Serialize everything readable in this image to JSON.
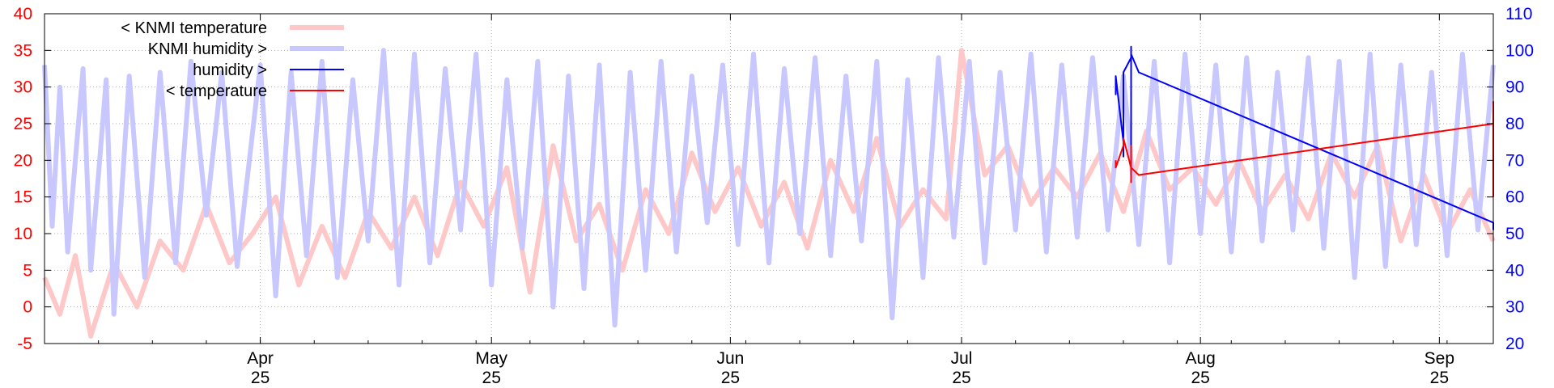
{
  "chart_data": {
    "type": "line",
    "title": "",
    "grid": true,
    "legend_position": "top-left",
    "x_range": [
      "2025-03-04",
      "2025-09-08"
    ],
    "x_ticks": [
      {
        "date": "2025-04-01",
        "month": "Apr",
        "day": "25"
      },
      {
        "date": "2025-05-01",
        "month": "May",
        "day": "25"
      },
      {
        "date": "2025-06-01",
        "month": "Jun",
        "day": "25"
      },
      {
        "date": "2025-07-01",
        "month": "Jul",
        "day": "25"
      },
      {
        "date": "2025-08-01",
        "month": "Aug",
        "day": "25"
      },
      {
        "date": "2025-09-01",
        "month": "Sep",
        "day": "25"
      }
    ],
    "y_left": {
      "range": [
        -5,
        40
      ],
      "ticks": [
        "40",
        "35",
        "30",
        "25",
        "20",
        "15",
        "10",
        "5",
        "0",
        "-5"
      ],
      "color": "#ff0000"
    },
    "y_right": {
      "range": [
        20,
        110
      ],
      "ticks": [
        "110",
        "100",
        "90",
        "80",
        "70",
        "60",
        "50",
        "40",
        "30",
        "20"
      ],
      "color": "#0000ff"
    },
    "series": [
      {
        "name": "< KNMI temperature",
        "axis": "left",
        "color": "#ffc8c8",
        "line_width": "thick",
        "points": [
          [
            "2025-03-04",
            4
          ],
          [
            "2025-03-06",
            -1
          ],
          [
            "2025-03-08",
            7
          ],
          [
            "2025-03-10",
            -4
          ],
          [
            "2025-03-13",
            6
          ],
          [
            "2025-03-16",
            0
          ],
          [
            "2025-03-19",
            9
          ],
          [
            "2025-03-22",
            5
          ],
          [
            "2025-03-25",
            14
          ],
          [
            "2025-03-28",
            6
          ],
          [
            "2025-03-31",
            10
          ],
          [
            "2025-04-03",
            15
          ],
          [
            "2025-04-06",
            3
          ],
          [
            "2025-04-09",
            11
          ],
          [
            "2025-04-12",
            4
          ],
          [
            "2025-04-15",
            13
          ],
          [
            "2025-04-18",
            8
          ],
          [
            "2025-04-21",
            15
          ],
          [
            "2025-04-24",
            7
          ],
          [
            "2025-04-27",
            17
          ],
          [
            "2025-04-30",
            11
          ],
          [
            "2025-05-03",
            19
          ],
          [
            "2025-05-06",
            2
          ],
          [
            "2025-05-09",
            22
          ],
          [
            "2025-05-12",
            9
          ],
          [
            "2025-05-15",
            14
          ],
          [
            "2025-05-18",
            5
          ],
          [
            "2025-05-21",
            16
          ],
          [
            "2025-05-24",
            10
          ],
          [
            "2025-05-27",
            21
          ],
          [
            "2025-05-30",
            13
          ],
          [
            "2025-06-02",
            19
          ],
          [
            "2025-06-05",
            11
          ],
          [
            "2025-06-08",
            17
          ],
          [
            "2025-06-11",
            8
          ],
          [
            "2025-06-14",
            20
          ],
          [
            "2025-06-17",
            13
          ],
          [
            "2025-06-20",
            23
          ],
          [
            "2025-06-23",
            11
          ],
          [
            "2025-06-26",
            16
          ],
          [
            "2025-06-29",
            12
          ],
          [
            "2025-07-01",
            35
          ],
          [
            "2025-07-04",
            18
          ],
          [
            "2025-07-07",
            22
          ],
          [
            "2025-07-10",
            14
          ],
          [
            "2025-07-13",
            19
          ],
          [
            "2025-07-16",
            15
          ],
          [
            "2025-07-19",
            21
          ],
          [
            "2025-07-22",
            13
          ],
          [
            "2025-07-25",
            24
          ],
          [
            "2025-07-28",
            16
          ],
          [
            "2025-07-31",
            19
          ],
          [
            "2025-08-03",
            14
          ],
          [
            "2025-08-06",
            20
          ],
          [
            "2025-08-09",
            13
          ],
          [
            "2025-08-12",
            18
          ],
          [
            "2025-08-15",
            12
          ],
          [
            "2025-08-18",
            21
          ],
          [
            "2025-08-21",
            15
          ],
          [
            "2025-08-24",
            22
          ],
          [
            "2025-08-27",
            9
          ],
          [
            "2025-08-30",
            18
          ],
          [
            "2025-09-02",
            10
          ],
          [
            "2025-09-05",
            16
          ],
          [
            "2025-09-08",
            9
          ]
        ]
      },
      {
        "name": "KNMI humidity >",
        "axis": "right",
        "color": "#c8c8ff",
        "line_width": "thick",
        "points": [
          [
            "2025-03-04",
            96
          ],
          [
            "2025-03-05",
            52
          ],
          [
            "2025-03-06",
            90
          ],
          [
            "2025-03-07",
            45
          ],
          [
            "2025-03-09",
            95
          ],
          [
            "2025-03-10",
            40
          ],
          [
            "2025-03-12",
            92
          ],
          [
            "2025-03-13",
            28
          ],
          [
            "2025-03-15",
            93
          ],
          [
            "2025-03-17",
            38
          ],
          [
            "2025-03-19",
            94
          ],
          [
            "2025-03-21",
            42
          ],
          [
            "2025-03-23",
            97
          ],
          [
            "2025-03-25",
            55
          ],
          [
            "2025-03-27",
            94
          ],
          [
            "2025-03-29",
            41
          ],
          [
            "2025-04-01",
            96
          ],
          [
            "2025-04-03",
            33
          ],
          [
            "2025-04-05",
            94
          ],
          [
            "2025-04-07",
            44
          ],
          [
            "2025-04-09",
            97
          ],
          [
            "2025-04-11",
            38
          ],
          [
            "2025-04-13",
            92
          ],
          [
            "2025-04-15",
            48
          ],
          [
            "2025-04-17",
            100
          ],
          [
            "2025-04-19",
            36
          ],
          [
            "2025-04-21",
            99
          ],
          [
            "2025-04-23",
            42
          ],
          [
            "2025-04-25",
            95
          ],
          [
            "2025-04-27",
            51
          ],
          [
            "2025-04-29",
            99
          ],
          [
            "2025-05-01",
            36
          ],
          [
            "2025-05-03",
            92
          ],
          [
            "2025-05-05",
            46
          ],
          [
            "2025-05-07",
            97
          ],
          [
            "2025-05-09",
            30
          ],
          [
            "2025-05-11",
            93
          ],
          [
            "2025-05-13",
            35
          ],
          [
            "2025-05-15",
            96
          ],
          [
            "2025-05-17",
            25
          ],
          [
            "2025-05-19",
            94
          ],
          [
            "2025-05-21",
            40
          ],
          [
            "2025-05-23",
            97
          ],
          [
            "2025-05-25",
            45
          ],
          [
            "2025-05-27",
            93
          ],
          [
            "2025-05-29",
            53
          ],
          [
            "2025-05-31",
            96
          ],
          [
            "2025-06-02",
            47
          ],
          [
            "2025-06-04",
            99
          ],
          [
            "2025-06-06",
            42
          ],
          [
            "2025-06-08",
            95
          ],
          [
            "2025-06-10",
            50
          ],
          [
            "2025-06-12",
            98
          ],
          [
            "2025-06-14",
            44
          ],
          [
            "2025-06-16",
            93
          ],
          [
            "2025-06-18",
            48
          ],
          [
            "2025-06-20",
            97
          ],
          [
            "2025-06-22",
            27
          ],
          [
            "2025-06-24",
            92
          ],
          [
            "2025-06-26",
            38
          ],
          [
            "2025-06-28",
            98
          ],
          [
            "2025-06-30",
            49
          ],
          [
            "2025-07-02",
            97
          ],
          [
            "2025-07-04",
            42
          ],
          [
            "2025-07-06",
            94
          ],
          [
            "2025-07-08",
            51
          ],
          [
            "2025-07-10",
            99
          ],
          [
            "2025-07-12",
            45
          ],
          [
            "2025-07-14",
            96
          ],
          [
            "2025-07-16",
            49
          ],
          [
            "2025-07-18",
            98
          ],
          [
            "2025-07-20",
            51
          ],
          [
            "2025-07-22",
            93
          ],
          [
            "2025-07-24",
            47
          ],
          [
            "2025-07-26",
            97
          ],
          [
            "2025-07-28",
            42
          ],
          [
            "2025-07-30",
            99
          ],
          [
            "2025-08-01",
            50
          ],
          [
            "2025-08-03",
            96
          ],
          [
            "2025-08-05",
            45
          ],
          [
            "2025-08-07",
            98
          ],
          [
            "2025-08-09",
            48
          ],
          [
            "2025-08-11",
            94
          ],
          [
            "2025-08-13",
            51
          ],
          [
            "2025-08-15",
            98
          ],
          [
            "2025-08-17",
            46
          ],
          [
            "2025-08-19",
            97
          ],
          [
            "2025-08-21",
            38
          ],
          [
            "2025-08-23",
            99
          ],
          [
            "2025-08-25",
            41
          ],
          [
            "2025-08-27",
            96
          ],
          [
            "2025-08-29",
            47
          ],
          [
            "2025-08-31",
            94
          ],
          [
            "2025-09-02",
            44
          ],
          [
            "2025-09-04",
            99
          ],
          [
            "2025-09-06",
            51
          ],
          [
            "2025-09-08",
            96
          ]
        ]
      },
      {
        "name": "humidity >",
        "axis": "right",
        "color": "#0000ff",
        "line_width": "thin",
        "points": [
          [
            "2025-07-21",
            91
          ],
          [
            "2025-07-21",
            88
          ],
          [
            "2025-07-21",
            93
          ],
          [
            "2025-07-22",
            75
          ],
          [
            "2025-07-22",
            71
          ],
          [
            "2025-07-22",
            86
          ],
          [
            "2025-07-22",
            94
          ],
          [
            "2025-07-23",
            98
          ],
          [
            "2025-07-23",
            97
          ],
          [
            "2025-07-23",
            101
          ],
          [
            "2025-07-23",
            68
          ],
          [
            "2025-07-23",
            92
          ],
          [
            "2025-07-23",
            86
          ],
          [
            "2025-07-23",
            99
          ],
          [
            "2025-07-24",
            94
          ],
          [
            "2025-09-08",
            53
          ],
          [
            "2025-09-08",
            51
          ]
        ]
      },
      {
        "name": "< temperature",
        "axis": "left",
        "color": "#ff0000",
        "line_width": "thin",
        "points": [
          [
            "2025-07-21",
            20
          ],
          [
            "2025-07-21",
            19
          ],
          [
            "2025-07-22",
            22
          ],
          [
            "2025-07-22",
            23
          ],
          [
            "2025-07-23",
            19
          ],
          [
            "2025-07-23",
            17
          ],
          [
            "2025-07-23",
            21
          ],
          [
            "2025-07-23",
            22
          ],
          [
            "2025-07-23",
            19
          ],
          [
            "2025-07-24",
            18
          ],
          [
            "2025-09-08",
            25
          ],
          [
            "2025-09-08",
            28
          ],
          [
            "2025-09-08",
            15
          ]
        ]
      }
    ]
  }
}
